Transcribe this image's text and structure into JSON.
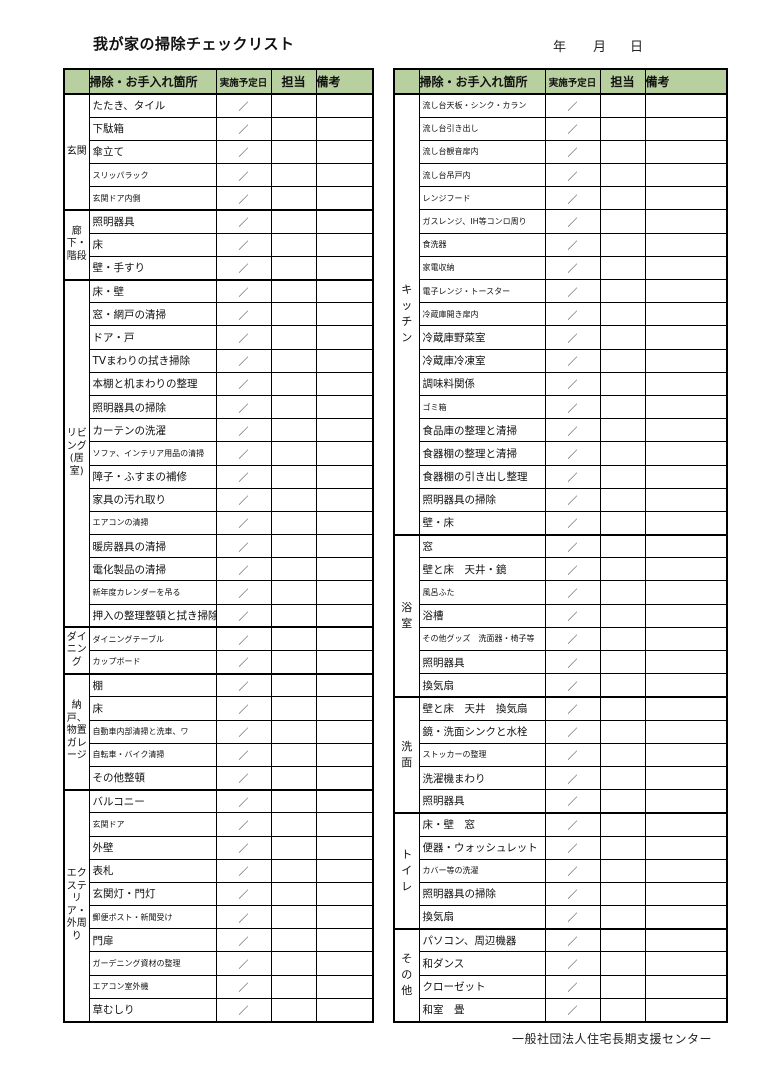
{
  "page": {
    "title": "我が家の掃除チェックリスト",
    "date_labels": {
      "year": "年",
      "month": "月",
      "day": "日"
    },
    "footer": "一般社団法人住宅長期支援センター",
    "slash": "／"
  },
  "colors": {
    "header_bg": "#b8d0a0",
    "border": "#000000"
  },
  "header": {
    "location": "掃除・お手入れ箇所",
    "date": "実施予定日",
    "charge": "担当",
    "remarks": "備考"
  },
  "left_table": {
    "sections": [
      {
        "category": "玄関",
        "cat_size": "l",
        "items": [
          {
            "label": "たたき、タイル"
          },
          {
            "label": "下駄箱"
          },
          {
            "label": "傘立て"
          },
          {
            "label": "スリッパラック",
            "small": true
          },
          {
            "label": "玄関ドア内側",
            "small": true
          }
        ]
      },
      {
        "category": "廊下・階段",
        "cat_size": "s",
        "items": [
          {
            "label": "照明器具"
          },
          {
            "label": "床"
          },
          {
            "label": "壁・手すり"
          }
        ]
      },
      {
        "category": "リビング(居室)",
        "cat_size": "s",
        "items": [
          {
            "label": "床・壁"
          },
          {
            "label": "窓・網戸の清掃"
          },
          {
            "label": "ドア・戸"
          },
          {
            "label": "TVまわりの拭き掃除"
          },
          {
            "label": "本棚と机まわりの整理"
          },
          {
            "label": "照明器具の掃除"
          },
          {
            "label": "カーテンの洗濯"
          },
          {
            "label": "ソファ、インテリア用品の清掃",
            "small": true
          },
          {
            "label": "障子・ふすまの補修"
          },
          {
            "label": "家具の汚れ取り"
          },
          {
            "label": "エアコンの清掃",
            "small": true
          },
          {
            "label": "暖房器具の清掃"
          },
          {
            "label": "電化製品の清掃"
          },
          {
            "label": "新年度カレンダーを吊る",
            "small": true
          },
          {
            "label": "押入の整理整頓と拭き掃除"
          }
        ]
      },
      {
        "category": "ダイニング",
        "cat_size": "s",
        "items": [
          {
            "label": "ダイニングテーブル",
            "small": true
          },
          {
            "label": "カップボード",
            "small": true
          }
        ]
      },
      {
        "category": "納戸、物置ガレージ",
        "cat_size": "m",
        "items": [
          {
            "label": "棚"
          },
          {
            "label": "床"
          },
          {
            "label": "自動車内部清掃と洗車、ワ",
            "small": true
          },
          {
            "label": "自転車・バイク清掃",
            "small": true
          },
          {
            "label": "その他整頓"
          }
        ]
      },
      {
        "category": "エクステリア・外周り",
        "cat_size": "m",
        "items": [
          {
            "label": "バルコニー"
          },
          {
            "label": "玄関ドア",
            "small": true
          },
          {
            "label": "外壁"
          },
          {
            "label": "表札"
          },
          {
            "label": "玄関灯・門灯"
          },
          {
            "label": "郵便ポスト・新聞受け",
            "small": true
          },
          {
            "label": "門扉"
          },
          {
            "label": "ガーデニング資材の整理",
            "small": true
          },
          {
            "label": "エアコン室外機",
            "small": true
          },
          {
            "label": "草むしり"
          }
        ]
      }
    ]
  },
  "right_table": {
    "sections": [
      {
        "category": "キッチン",
        "cat_size": "m",
        "items": [
          {
            "label": "流し台天板・シンク・カラン",
            "small": true
          },
          {
            "label": "流し台引き出し",
            "small": true
          },
          {
            "label": "流し台観音扉内",
            "small": true
          },
          {
            "label": "流し台吊戸内",
            "small": true
          },
          {
            "label": "レンジフード",
            "small": true
          },
          {
            "label": "ガスレンジ、IH等コンロ周り",
            "small": true
          },
          {
            "label": "食洗器",
            "small": true
          },
          {
            "label": "家電収納",
            "small": true
          },
          {
            "label": "電子レンジ・トースター",
            "small": true
          },
          {
            "label": "冷蔵庫開き扉内",
            "small": true
          },
          {
            "label": "冷蔵庫野菜室"
          },
          {
            "label": "冷蔵庫冷凍室"
          },
          {
            "label": "調味料関係"
          },
          {
            "label": "ゴミ箱",
            "small": true
          },
          {
            "label": "食品庫の整理と清掃"
          },
          {
            "label": "食器棚の整理と清掃"
          },
          {
            "label": "食器棚の引き出し整理"
          },
          {
            "label": "照明器具の掃除"
          },
          {
            "label": "壁・床"
          }
        ]
      },
      {
        "category": "浴室",
        "cat_size": "m",
        "items": [
          {
            "label": "窓"
          },
          {
            "label": "壁と床　天井・鏡"
          },
          {
            "label": "風呂ふた",
            "small": true
          },
          {
            "label": "浴槽"
          },
          {
            "label": "その他グッズ　洗面器・椅子等",
            "small": true
          },
          {
            "label": "照明器具"
          },
          {
            "label": "換気扇"
          }
        ]
      },
      {
        "category": "洗面",
        "cat_size": "m",
        "items": [
          {
            "label": "壁と床　天井　換気扇"
          },
          {
            "label": "鏡・洗面シンクと水栓"
          },
          {
            "label": "ストッカーの整理",
            "small": true
          },
          {
            "label": "洗濯機まわり"
          },
          {
            "label": "照明器具"
          }
        ]
      },
      {
        "category": "トイレ",
        "cat_size": "m",
        "items": [
          {
            "label": "床・壁　窓"
          },
          {
            "label": "便器・ウォッシュレット"
          },
          {
            "label": "カバー等の洗濯",
            "small": true
          },
          {
            "label": "照明器具の掃除"
          },
          {
            "label": "換気扇"
          }
        ]
      },
      {
        "category": "その他",
        "cat_size": "m",
        "items": [
          {
            "label": "パソコン、周辺機器"
          },
          {
            "label": "和ダンス"
          },
          {
            "label": "クローゼット"
          },
          {
            "label": "和室　畳"
          }
        ]
      }
    ]
  }
}
